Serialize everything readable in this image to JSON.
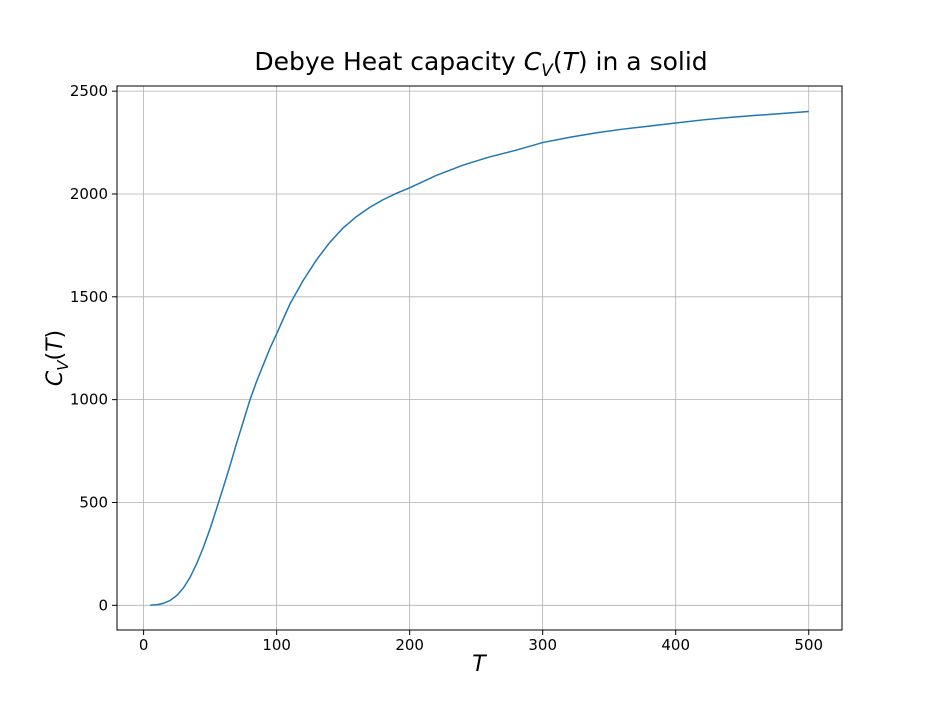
{
  "chart_data": {
    "type": "line",
    "title_parts": [
      "Debye Heat capacity ",
      "C",
      "V",
      "(",
      "T",
      ") in a solid"
    ],
    "xlabel": "T",
    "ylabel_parts": [
      "C",
      "V",
      "(",
      "T",
      ")"
    ],
    "xlim": [
      -20,
      525
    ],
    "ylim": [
      -120,
      2525
    ],
    "xticks": [
      0,
      100,
      200,
      300,
      400,
      500
    ],
    "yticks": [
      0,
      500,
      1000,
      1500,
      2000,
      2500
    ],
    "xtick_labels": [
      "0",
      "100",
      "200",
      "300",
      "400",
      "500"
    ],
    "ytick_labels": [
      "0",
      "500",
      "1000",
      "1500",
      "2000",
      "2500"
    ],
    "grid": true,
    "line_color": "#1f77b4",
    "series": [
      {
        "x": [
          5,
          10,
          15,
          20,
          25,
          30,
          35,
          40,
          45,
          50,
          55,
          60,
          65,
          70,
          75,
          80,
          85,
          90,
          95,
          100,
          110,
          120,
          130,
          140,
          150,
          160,
          170,
          180,
          190,
          200,
          220,
          240,
          260,
          280,
          300,
          320,
          340,
          360,
          380,
          400,
          420,
          440,
          460,
          480,
          500
        ],
        "y": [
          1,
          3,
          10,
          24,
          48,
          85,
          137,
          204,
          283,
          373,
          473,
          575,
          680,
          790,
          895,
          1000,
          1090,
          1170,
          1250,
          1320,
          1465,
          1580,
          1680,
          1765,
          1835,
          1890,
          1935,
          1972,
          2003,
          2030,
          2090,
          2140,
          2180,
          2213,
          2250,
          2275,
          2297,
          2315,
          2330,
          2345,
          2360,
          2372,
          2382,
          2391,
          2401
        ]
      }
    ]
  }
}
